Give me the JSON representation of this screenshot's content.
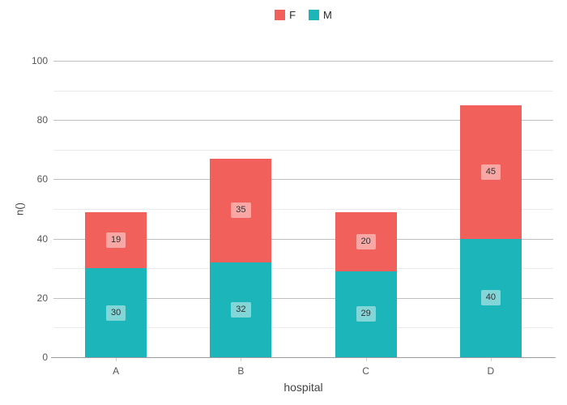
{
  "legend": {
    "items": [
      {
        "label": "F",
        "color": "#f2605b"
      },
      {
        "label": "M",
        "color": "#1cb5b9"
      }
    ]
  },
  "chart_data": {
    "type": "bar",
    "stacked": true,
    "categories": [
      "A",
      "B",
      "C",
      "D"
    ],
    "series": [
      {
        "name": "M",
        "color": "#1cb5b9",
        "values": [
          30,
          32,
          29,
          40
        ]
      },
      {
        "name": "F",
        "color": "#f2605b",
        "values": [
          19,
          35,
          20,
          45
        ]
      }
    ],
    "totals": [
      49,
      67,
      49,
      85
    ],
    "title": "",
    "xlabel": "hospital",
    "ylabel": "n()",
    "ylim": [
      0,
      100
    ],
    "yticks": [
      0,
      20,
      40,
      60,
      80,
      100
    ],
    "yticks_minor": [
      10,
      30,
      50,
      70,
      90
    ],
    "grid": "on",
    "legend_position": "top-center",
    "bar_labels": "on"
  }
}
